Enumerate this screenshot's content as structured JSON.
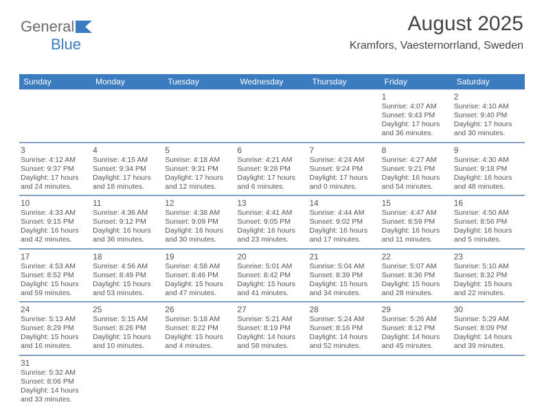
{
  "logo": {
    "text1": "General",
    "text2": "Blue"
  },
  "title": "August 2025",
  "location": "Kramfors, Vaesternorrland, Sweden",
  "header_bg": "#3b7bbf",
  "days_of_week": [
    "Sunday",
    "Monday",
    "Tuesday",
    "Wednesday",
    "Thursday",
    "Friday",
    "Saturday"
  ],
  "weeks": [
    [
      null,
      null,
      null,
      null,
      null,
      {
        "n": "1",
        "sr": "4:07 AM",
        "ss": "9:43 PM",
        "dl": "17 hours and 36 minutes."
      },
      {
        "n": "2",
        "sr": "4:10 AM",
        "ss": "9:40 PM",
        "dl": "17 hours and 30 minutes."
      }
    ],
    [
      {
        "n": "3",
        "sr": "4:12 AM",
        "ss": "9:37 PM",
        "dl": "17 hours and 24 minutes."
      },
      {
        "n": "4",
        "sr": "4:15 AM",
        "ss": "9:34 PM",
        "dl": "17 hours and 18 minutes."
      },
      {
        "n": "5",
        "sr": "4:18 AM",
        "ss": "9:31 PM",
        "dl": "17 hours and 12 minutes."
      },
      {
        "n": "6",
        "sr": "4:21 AM",
        "ss": "9:28 PM",
        "dl": "17 hours and 6 minutes."
      },
      {
        "n": "7",
        "sr": "4:24 AM",
        "ss": "9:24 PM",
        "dl": "17 hours and 0 minutes."
      },
      {
        "n": "8",
        "sr": "4:27 AM",
        "ss": "9:21 PM",
        "dl": "16 hours and 54 minutes."
      },
      {
        "n": "9",
        "sr": "4:30 AM",
        "ss": "9:18 PM",
        "dl": "16 hours and 48 minutes."
      }
    ],
    [
      {
        "n": "10",
        "sr": "4:33 AM",
        "ss": "9:15 PM",
        "dl": "16 hours and 42 minutes."
      },
      {
        "n": "11",
        "sr": "4:36 AM",
        "ss": "9:12 PM",
        "dl": "16 hours and 36 minutes."
      },
      {
        "n": "12",
        "sr": "4:38 AM",
        "ss": "9:09 PM",
        "dl": "16 hours and 30 minutes."
      },
      {
        "n": "13",
        "sr": "4:41 AM",
        "ss": "9:05 PM",
        "dl": "16 hours and 23 minutes."
      },
      {
        "n": "14",
        "sr": "4:44 AM",
        "ss": "9:02 PM",
        "dl": "16 hours and 17 minutes."
      },
      {
        "n": "15",
        "sr": "4:47 AM",
        "ss": "8:59 PM",
        "dl": "16 hours and 11 minutes."
      },
      {
        "n": "16",
        "sr": "4:50 AM",
        "ss": "8:56 PM",
        "dl": "16 hours and 5 minutes."
      }
    ],
    [
      {
        "n": "17",
        "sr": "4:53 AM",
        "ss": "8:52 PM",
        "dl": "15 hours and 59 minutes."
      },
      {
        "n": "18",
        "sr": "4:56 AM",
        "ss": "8:49 PM",
        "dl": "15 hours and 53 minutes."
      },
      {
        "n": "19",
        "sr": "4:58 AM",
        "ss": "8:46 PM",
        "dl": "15 hours and 47 minutes."
      },
      {
        "n": "20",
        "sr": "5:01 AM",
        "ss": "8:42 PM",
        "dl": "15 hours and 41 minutes."
      },
      {
        "n": "21",
        "sr": "5:04 AM",
        "ss": "8:39 PM",
        "dl": "15 hours and 34 minutes."
      },
      {
        "n": "22",
        "sr": "5:07 AM",
        "ss": "8:36 PM",
        "dl": "15 hours and 28 minutes."
      },
      {
        "n": "23",
        "sr": "5:10 AM",
        "ss": "8:32 PM",
        "dl": "15 hours and 22 minutes."
      }
    ],
    [
      {
        "n": "24",
        "sr": "5:13 AM",
        "ss": "8:29 PM",
        "dl": "15 hours and 16 minutes."
      },
      {
        "n": "25",
        "sr": "5:15 AM",
        "ss": "8:26 PM",
        "dl": "15 hours and 10 minutes."
      },
      {
        "n": "26",
        "sr": "5:18 AM",
        "ss": "8:22 PM",
        "dl": "15 hours and 4 minutes."
      },
      {
        "n": "27",
        "sr": "5:21 AM",
        "ss": "8:19 PM",
        "dl": "14 hours and 58 minutes."
      },
      {
        "n": "28",
        "sr": "5:24 AM",
        "ss": "8:16 PM",
        "dl": "14 hours and 52 minutes."
      },
      {
        "n": "29",
        "sr": "5:26 AM",
        "ss": "8:12 PM",
        "dl": "14 hours and 45 minutes."
      },
      {
        "n": "30",
        "sr": "5:29 AM",
        "ss": "8:09 PM",
        "dl": "14 hours and 39 minutes."
      }
    ],
    [
      {
        "n": "31",
        "sr": "5:32 AM",
        "ss": "8:06 PM",
        "dl": "14 hours and 33 minutes."
      },
      null,
      null,
      null,
      null,
      null,
      null
    ]
  ],
  "labels": {
    "sunrise": "Sunrise: ",
    "sunset": "Sunset: ",
    "daylight": "Daylight: "
  }
}
